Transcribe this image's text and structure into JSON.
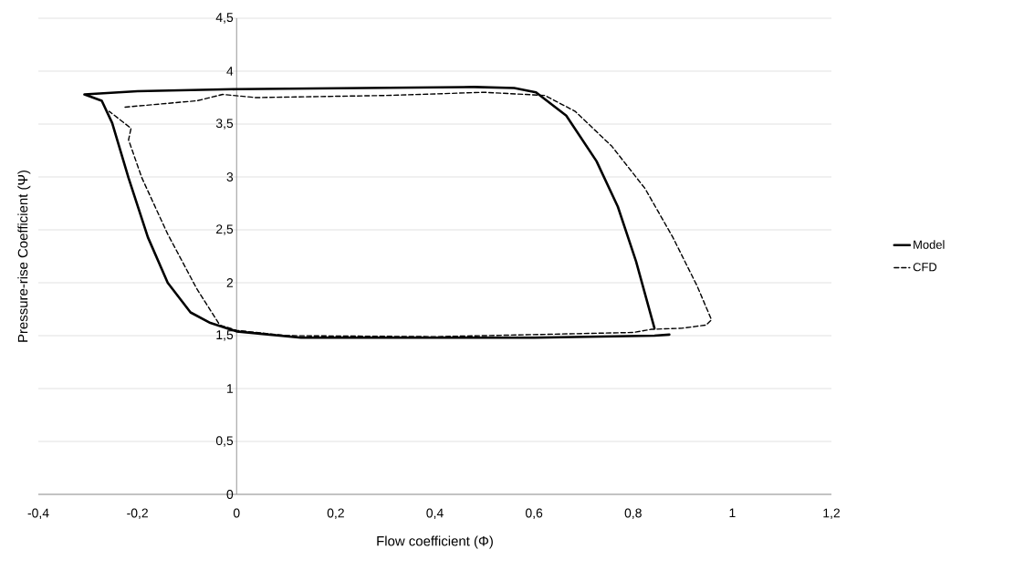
{
  "chart_data": {
    "type": "line",
    "xlabel": "Flow coefficient (Φ)",
    "ylabel": "Pressure-rise Coefficient (Ψ)",
    "xlim": [
      -0.4,
      1.2
    ],
    "ylim": [
      0,
      4.5
    ],
    "xticks": [
      {
        "value": -0.4,
        "label": "-0,4"
      },
      {
        "value": -0.2,
        "label": "-0,2"
      },
      0,
      {
        "value": 0.2,
        "label": "0,2"
      },
      {
        "value": 0.4,
        "label": "0,4"
      },
      {
        "value": 0.6,
        "label": "0,6"
      },
      {
        "value": 0.8,
        "label": "0,8"
      },
      1,
      {
        "value": 1.2,
        "label": "1,2"
      }
    ],
    "yticks": [
      0,
      {
        "value": 0.5,
        "label": "0,5"
      },
      1,
      {
        "value": 1.5,
        "label": "1,5"
      },
      2,
      {
        "value": 2.5,
        "label": "2,5"
      },
      3,
      {
        "value": 3.5,
        "label": "3,5"
      },
      4,
      {
        "value": 4.5,
        "label": "4,5"
      }
    ],
    "grid": "y",
    "legend": "right",
    "marker": "none",
    "series": [
      {
        "name": "Model",
        "color": "#000000",
        "line_style": "solid",
        "x": [
          0.873,
          0.843,
          0.6,
          0.13,
          0.0,
          -0.053,
          -0.093,
          -0.139,
          -0.179,
          -0.218,
          -0.251,
          -0.272,
          -0.307,
          -0.2,
          0.0,
          0.48,
          0.56,
          0.604,
          0.665,
          0.726,
          0.769,
          0.806,
          0.843
        ],
        "values": [
          1.51,
          1.5,
          1.48,
          1.48,
          1.54,
          1.62,
          1.72,
          2.0,
          2.43,
          2.99,
          3.51,
          3.72,
          3.78,
          3.81,
          3.83,
          3.85,
          3.84,
          3.8,
          3.58,
          3.15,
          2.72,
          2.2,
          1.57
        ]
      },
      {
        "name": "CFD",
        "color": "#000000",
        "line_style": "dashed",
        "x": [
          -0.225,
          -0.08,
          -0.028,
          0.039,
          0.3,
          0.5,
          0.622,
          0.683,
          0.757,
          0.824,
          0.88,
          0.929,
          0.958,
          0.947,
          0.898,
          0.837,
          0.8,
          0.4,
          0.1,
          0.0,
          -0.034,
          -0.08,
          -0.139,
          -0.191,
          -0.218,
          -0.213,
          -0.257
        ],
        "values": [
          3.66,
          3.72,
          3.78,
          3.75,
          3.77,
          3.8,
          3.77,
          3.62,
          3.29,
          2.89,
          2.43,
          1.97,
          1.65,
          1.6,
          1.57,
          1.56,
          1.53,
          1.49,
          1.5,
          1.55,
          1.6,
          1.94,
          2.46,
          2.99,
          3.35,
          3.46,
          3.62
        ]
      }
    ]
  }
}
